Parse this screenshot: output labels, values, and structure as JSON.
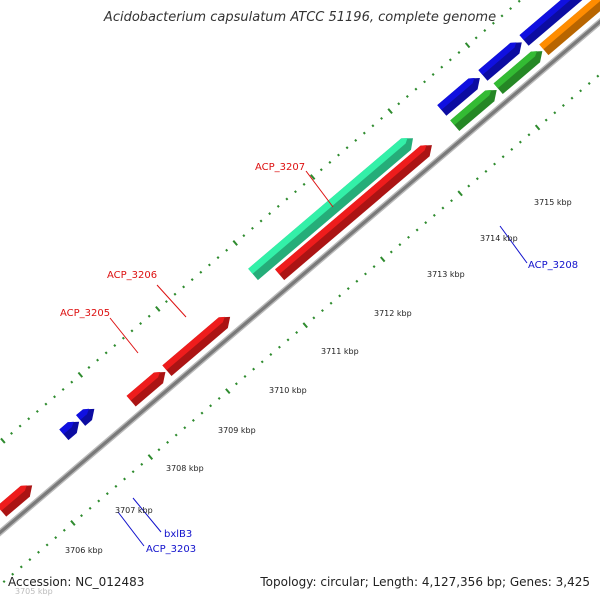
{
  "title": "Acidobacterium capsulatum ATCC 51196, complete genome",
  "footer": {
    "accession": "Accession: NC_012483",
    "topology": "Topology: circular; Length: 4,127,356 bp; Genes: 3,425"
  },
  "colors": {
    "backbone": "#7a7a7a",
    "tick": "#2e8b2e",
    "red_gene": "#ee1c1c",
    "blue_gene": "#1010e0",
    "green_gene": "#33bb33",
    "orange_gene": "#ff8c00",
    "teal_gene": "#33f0a8",
    "red_label": "#dd1111",
    "blue_label": "#1111cc"
  },
  "scale_labels": [
    "3705 kbp",
    "3706 kbp",
    "3707 kbp",
    "3708 kbp",
    "3709 kbp",
    "3710 kbp",
    "3711 kbp",
    "3712 kbp",
    "3713 kbp",
    "3714 kbp",
    "3715 kbp"
  ],
  "gene_labels": [
    {
      "id": "ACP_3207",
      "color": "red"
    },
    {
      "id": "ACP_3206",
      "color": "red"
    },
    {
      "id": "ACP_3205",
      "color": "red"
    },
    {
      "id": "ACP_3208",
      "color": "blue"
    },
    {
      "id": "bxlB3",
      "color": "blue"
    },
    {
      "id": "ACP_3203",
      "color": "blue"
    }
  ]
}
